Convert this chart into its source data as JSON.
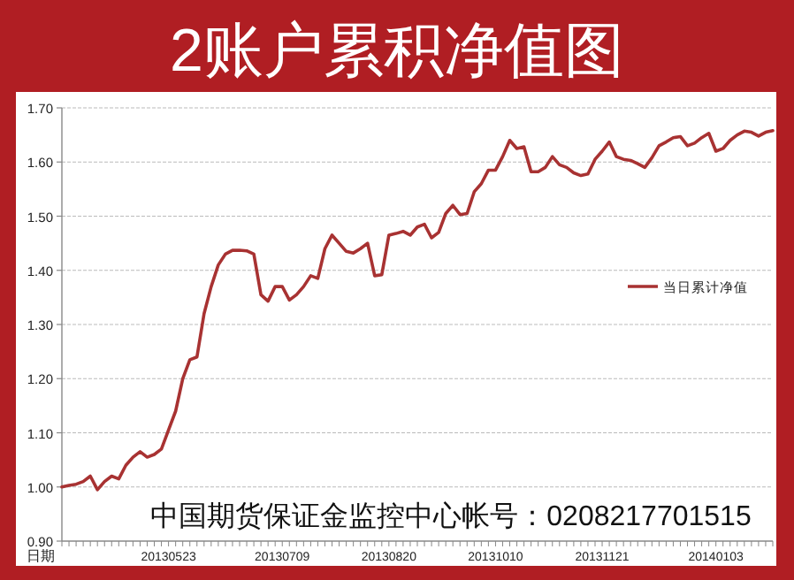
{
  "chart_data": {
    "type": "line",
    "title": "2账户累积净值图",
    "xlabel": "日期",
    "annotations": [
      "中国期货保证金监控中心帐号：0208217701515"
    ],
    "categories": [
      null,
      null,
      null,
      null,
      null,
      null,
      null,
      null,
      null,
      null,
      null,
      null,
      null,
      null,
      null,
      "20130523",
      null,
      null,
      null,
      null,
      null,
      null,
      null,
      null,
      null,
      null,
      null,
      null,
      null,
      null,
      null,
      "20130709",
      null,
      null,
      null,
      null,
      null,
      null,
      null,
      null,
      null,
      null,
      null,
      null,
      null,
      null,
      "20130820",
      null,
      null,
      null,
      null,
      null,
      null,
      null,
      null,
      null,
      null,
      null,
      null,
      null,
      null,
      "20131010",
      null,
      null,
      null,
      null,
      null,
      null,
      null,
      null,
      null,
      null,
      null,
      null,
      null,
      null,
      "20131121",
      null,
      null,
      null,
      null,
      null,
      null,
      null,
      null,
      null,
      null,
      null,
      null,
      null,
      null,
      null,
      "20140103",
      null,
      null,
      null,
      null,
      null,
      null,
      null,
      null
    ],
    "series": [
      {
        "name": "当日累计净值",
        "color": "#a83232",
        "values": [
          1.0,
          1.003,
          1.005,
          1.01,
          1.02,
          0.995,
          1.01,
          1.02,
          1.015,
          1.04,
          1.055,
          1.065,
          1.055,
          1.06,
          1.07,
          1.105,
          1.14,
          1.2,
          1.235,
          1.24,
          1.32,
          1.37,
          1.41,
          1.43,
          1.437,
          1.437,
          1.436,
          1.43,
          1.355,
          1.343,
          1.37,
          1.37,
          1.345,
          1.355,
          1.37,
          1.39,
          1.385,
          1.44,
          1.465,
          1.45,
          1.435,
          1.432,
          1.44,
          1.45,
          1.39,
          1.392,
          1.465,
          1.468,
          1.472,
          1.465,
          1.48,
          1.485,
          1.46,
          1.47,
          1.505,
          1.52,
          1.503,
          1.505,
          1.545,
          1.56,
          1.585,
          1.585,
          1.61,
          1.64,
          1.625,
          1.628,
          1.582,
          1.582,
          1.59,
          1.61,
          1.595,
          1.59,
          1.58,
          1.575,
          1.578,
          1.605,
          1.62,
          1.637,
          1.61,
          1.605,
          1.603,
          1.597,
          1.59,
          1.608,
          1.63,
          1.637,
          1.645,
          1.647,
          1.63,
          1.635,
          1.645,
          1.653,
          1.62,
          1.625,
          1.64,
          1.65,
          1.657,
          1.655,
          1.648,
          1.655,
          1.658
        ]
      }
    ],
    "ylim": [
      0.9,
      1.7
    ],
    "yticks": [
      {
        "value": 0.9,
        "label": "0.90"
      },
      {
        "value": 1.0,
        "label": "1.00"
      },
      {
        "value": 1.1,
        "label": "1.10"
      },
      {
        "value": 1.2,
        "label": "1.20"
      },
      {
        "value": 1.3,
        "label": "1.30"
      },
      {
        "value": 1.4,
        "label": "1.40"
      },
      {
        "value": 1.5,
        "label": "1.50"
      },
      {
        "value": 1.6,
        "label": "1.60"
      },
      {
        "value": 1.7,
        "label": "1.70"
      }
    ],
    "grid": "y",
    "legend": "right"
  }
}
